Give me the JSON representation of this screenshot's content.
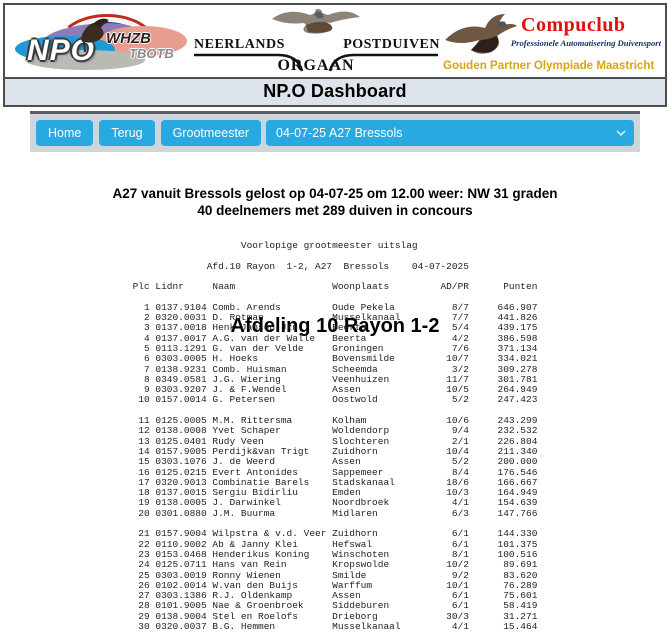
{
  "colors": {
    "accent": "#29a9e1",
    "navbg": "#ced5db",
    "barbg": "#dde3ea",
    "border-dark": "#4a4e52",
    "compuclub-red": "#e60d0d",
    "compuclub-navy": "#1d2f63",
    "gold": "#d9a414",
    "monotext": "#222222"
  },
  "header": {
    "npo_logo": {
      "npo": "NPO",
      "whzb": "WHZB",
      "tbotb": "TBOTB"
    },
    "orgaan_logo": {
      "left": "NEERLANDS",
      "right": "POSTDUIVEN",
      "bottom": "ORGAAN"
    },
    "compuclub": {
      "title": "Compuclub",
      "subtitle": "Professionele Automatisering Duivensport",
      "partner": "Gouden Partner Olympiade Maastricht"
    },
    "dashboard_title": "NP.O Dashboard"
  },
  "nav": {
    "home": "Home",
    "terug": "Terug",
    "grootmeester": "Grootmeester",
    "dropdown_value": "04-07-25 A27 Bressols"
  },
  "page": {
    "title": "Afdeling 10 Rayon 1-2",
    "subtitle1": "A27 vanuit Bressols gelost op 04-07-25 om 12.00 weer: NW 31 graden",
    "subtitle2": "40 deelnemers met 289 duiven in concours"
  },
  "report": {
    "title_line": "Voorlopige grootmeester uitslag",
    "info_line": "Afd.10 Rayon  1-2, A27  Bressols    04-07-2025",
    "columns": [
      "Plc",
      "Lidnr",
      "Naam",
      "Woonplaats",
      "AD/PR",
      "Punten"
    ],
    "group_size": 10,
    "rows": [
      [
        "1",
        "0137.9104",
        "Comb. Arends",
        "Oude Pekela",
        "8/7",
        "646.907"
      ],
      [
        "2",
        "0320.0031",
        "D. Rotman",
        "Musselkanaal",
        "7/7",
        "441.826"
      ],
      [
        "3",
        "0137.0018",
        "Henk Jansen Jzn.",
        "Beerta",
        "5/4",
        "439.175"
      ],
      [
        "4",
        "0137.0017",
        "A.G. van der Walle",
        "Beerta",
        "4/2",
        "386.598"
      ],
      [
        "5",
        "0113.1291",
        "G. van der Velde",
        "Groningen",
        "7/6",
        "371.134"
      ],
      [
        "6",
        "0303.0005",
        "H. Hoeks",
        "Bovensmilde",
        "10/7",
        "334.021"
      ],
      [
        "7",
        "0138.9231",
        "Comb. Huisman",
        "Scheemda",
        "3/2",
        "309.278"
      ],
      [
        "8",
        "0349.0581",
        "J.G. Wiering",
        "Veenhuizen",
        "11/7",
        "301.781"
      ],
      [
        "9",
        "0303.9207",
        "J. & F.Wendel",
        "Assen",
        "10/5",
        "264.949"
      ],
      [
        "10",
        "0157.0014",
        "G. Petersen",
        "Oostwold",
        "5/2",
        "247.423"
      ],
      [
        "11",
        "0125.0005",
        "M.M. Rittersma",
        "Kolham",
        "10/6",
        "243.299"
      ],
      [
        "12",
        "0138.0008",
        "Yvet Schaper",
        "Woldendorp",
        "9/4",
        "232.532"
      ],
      [
        "13",
        "0125.0401",
        "Rudy Veen",
        "Slochteren",
        "2/1",
        "226.804"
      ],
      [
        "14",
        "0157.9005",
        "Perdijk&van Trigt",
        "Zuidhorn",
        "10/4",
        "211.340"
      ],
      [
        "15",
        "0303.1076",
        "J. de Weerd",
        "Assen",
        "5/2",
        "200.000"
      ],
      [
        "16",
        "0125.0215",
        "Evert Antonides",
        "Sappemeer",
        "8/4",
        "176.546"
      ],
      [
        "17",
        "0320.9013",
        "Combinatie Barels",
        "Stadskanaal",
        "18/6",
        "166.667"
      ],
      [
        "18",
        "0137.0015",
        "Sergiu Bidirliu",
        "Emden",
        "10/3",
        "164.949"
      ],
      [
        "19",
        "0138.0005",
        "J. Darwinkel",
        "Noordbroek",
        "4/1",
        "154.639"
      ],
      [
        "20",
        "0301.0880",
        "J.M. Buurma",
        "Midlaren",
        "6/3",
        "147.766"
      ],
      [
        "21",
        "0157.9004",
        "Wilpstra & v.d. Veer",
        "Zuidhorn",
        "6/1",
        "144.330"
      ],
      [
        "22",
        "0110.9002",
        "Ab & Janny Klei",
        "Hefswal",
        "6/1",
        "101.375"
      ],
      [
        "23",
        "0153.0468",
        "Henderikus Koning",
        "Winschoten",
        "8/1",
        "100.516"
      ],
      [
        "24",
        "0125.0711",
        "Hans van Rein",
        "Kropswolde",
        "10/2",
        "89.691"
      ],
      [
        "25",
        "0303.0019",
        "Ronny Wienen",
        "Smilde",
        "9/2",
        "83.620"
      ],
      [
        "26",
        "0102.0014",
        "W.van den Buijs",
        "Warffum",
        "10/1",
        "76.289"
      ],
      [
        "27",
        "0303.1386",
        "R.J. Oldenkamp",
        "Assen",
        "6/1",
        "75.601"
      ],
      [
        "28",
        "0101.9005",
        "Nae & Groenbroek",
        "Siddeburen",
        "6/1",
        "58.419"
      ],
      [
        "29",
        "0138.9004",
        "Stel en Roelofs",
        "Drieborg",
        "30/3",
        "31.271"
      ],
      [
        "30",
        "0320.0037",
        "B.G. Hemmen",
        "Musselkanaal",
        "4/1",
        "15.464"
      ]
    ]
  }
}
